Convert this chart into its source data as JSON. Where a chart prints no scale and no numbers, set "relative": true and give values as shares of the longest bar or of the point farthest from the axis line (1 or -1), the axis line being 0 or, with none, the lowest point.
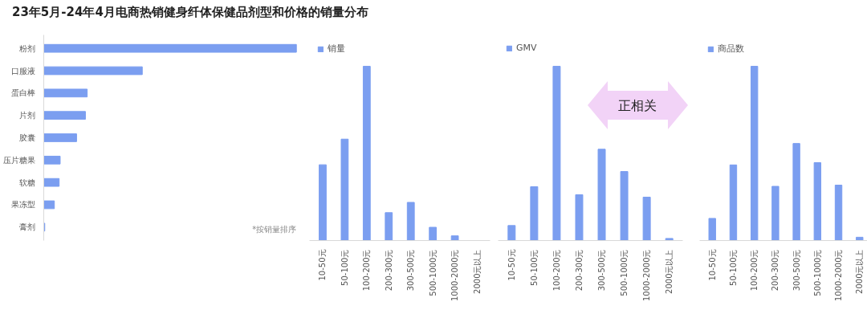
{
  "chart_data": [
    {
      "type": "bar",
      "title": "23年5月-24年4月电商热销健身纤体保健品剂型和价格的销量分布",
      "orientation": "horizontal",
      "relative": true,
      "categories": [
        "粉剂",
        "口服液",
        "蛋白棒",
        "片剂",
        "胶囊",
        "压片糖果",
        "软糖",
        "果冻型",
        "膏剂"
      ],
      "series": [
        {
          "color": "#7b9ef0",
          "values": [
            1,
            0.39,
            0.172,
            0.165,
            0.13,
            0.065,
            0.061,
            0.042,
            0.004
          ]
        }
      ],
      "annotations": [
        "*按销量排序"
      ],
      "grid": false,
      "legend": false
    },
    {
      "type": "bar",
      "relative": true,
      "categories": [
        "10-50元",
        "50-100元",
        "100-200元",
        "200-300元",
        "300-500元",
        "500-1000元",
        "1000-2000元",
        "2000元以上"
      ],
      "series": [
        {
          "name": "销量",
          "color": "#7b9ef0",
          "values": [
            0.435,
            0.582,
            1,
            0.16,
            0.219,
            0.076,
            0.027,
            0
          ]
        }
      ],
      "grid": false,
      "legend": "top left"
    },
    {
      "type": "bar",
      "relative": true,
      "categories": [
        "10-50元",
        "50-100元",
        "100-200元",
        "200-300元",
        "300-500元",
        "500-1000元",
        "1000-2000元",
        "2000元以上"
      ],
      "series": [
        {
          "name": "GMV",
          "color": "#7b9ef0",
          "values": [
            0.086,
            0.309,
            1,
            0.263,
            0.524,
            0.396,
            0.249,
            0.012
          ]
        }
      ],
      "annotations": [
        "正相关"
      ],
      "grid": false,
      "legend": "top left"
    },
    {
      "type": "bar",
      "relative": true,
      "categories": [
        "10-50元",
        "50-100元",
        "100-200元",
        "200-300元",
        "300-500元",
        "500-1000元",
        "1000-2000元",
        "2000元以上"
      ],
      "series": [
        {
          "name": "商品数",
          "color": "#7b9ef0",
          "values": [
            0.127,
            0.434,
            1,
            0.311,
            0.557,
            0.447,
            0.318,
            0.019
          ]
        }
      ],
      "grid": false,
      "legend": "top left"
    }
  ]
}
